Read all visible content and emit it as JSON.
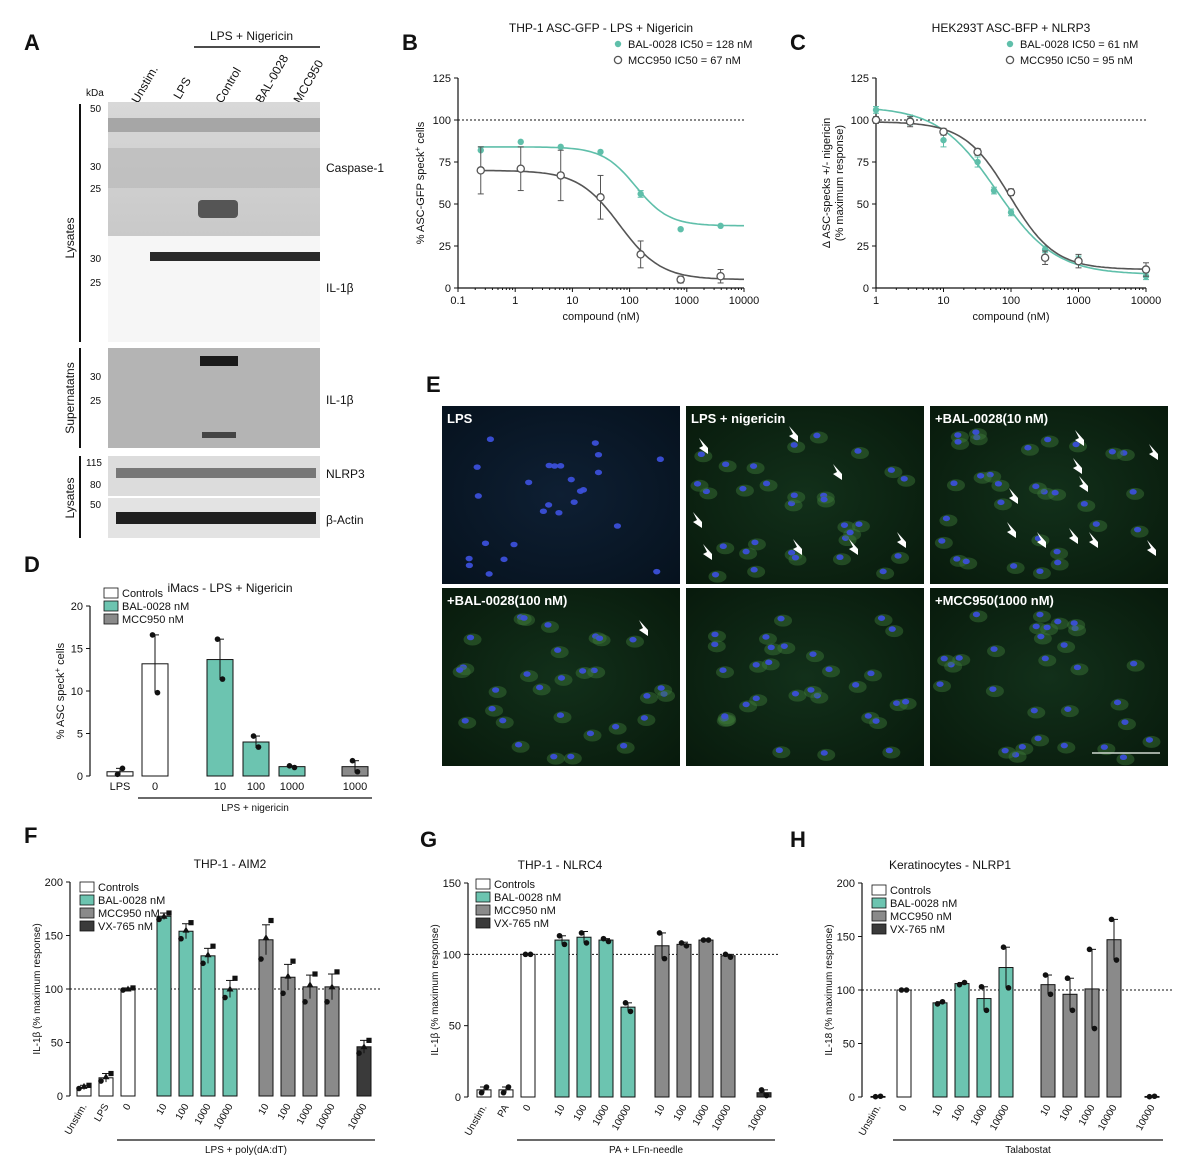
{
  "figure": {
    "panel_letters": [
      "A",
      "B",
      "C",
      "D",
      "E",
      "F",
      "G",
      "H"
    ],
    "colors": {
      "teal": "#5fbfaa",
      "teal_bar": "#6cc4b0",
      "grey_bar": "#8a8a8a",
      "dark_bar": "#3a3a3a",
      "open": "#ffffff",
      "line_grey": "#555555",
      "nuclei": "#3b4fd8",
      "cyto": "#3f7a3a"
    }
  },
  "blot": {
    "header_group": "LPS + Nigericin",
    "lanes": [
      "Unstim.",
      "LPS",
      "Control",
      "BAL-0028",
      "MCC950"
    ],
    "kda_label": "kDa",
    "sections": [
      {
        "side": "Lysates",
        "markers": [
          "50",
          "30",
          "25"
        ],
        "target": "Caspase-1"
      },
      {
        "side": "",
        "markers": [
          "30",
          "25"
        ],
        "target": "IL-1β"
      },
      {
        "side": "Supernatatns",
        "markers": [
          "30",
          "25"
        ],
        "target": "IL-1β"
      },
      {
        "side": "Lysates",
        "markers": [
          "115",
          "80"
        ],
        "target": "NLRP3"
      },
      {
        "side": "",
        "markers": [
          "50"
        ],
        "target": "β-Actin"
      }
    ]
  },
  "micrographs": {
    "tiles": [
      "LPS",
      "LPS + nigericin",
      "+BAL-0028(10 nM)",
      "+BAL-0028(100 nM)",
      "",
      "+MCC950(1000 nM)"
    ]
  },
  "chart_data": [
    {
      "panel": "B",
      "type": "scatter",
      "title": "THP-1 ASC-GFP - LPS + Nigericin",
      "xlabel": "compound (nM)",
      "ylabel_main": "% ASC-GFP speck",
      "ylabel_sup": "+",
      "ylabel_tail": " cells",
      "xscale": "log",
      "xlim": [
        0.1,
        10000
      ],
      "ylim": [
        0,
        125
      ],
      "x_ticks": [
        "0.1",
        "1",
        "10",
        "100",
        "1000",
        "10000"
      ],
      "y_ticks": [
        "0",
        "25",
        "50",
        "75",
        "100",
        "125"
      ],
      "reference_line": 100,
      "legend": [
        "BAL-0028 IC50 = 128 nM",
        "MCC950 IC50 = 67 nM"
      ],
      "series": [
        {
          "name": "BAL-0028",
          "ic50": 128,
          "x": [
            0.25,
            1.25,
            6.25,
            31,
            156,
            781,
            3900
          ],
          "y": [
            82,
            87,
            84,
            81,
            56,
            35,
            37
          ],
          "err": [
            0,
            0,
            0,
            0,
            2,
            0,
            0
          ],
          "fit": {
            "top": 84,
            "bottom": 37,
            "hill": 1.5
          }
        },
        {
          "name": "MCC950",
          "ic50": 67,
          "x": [
            0.25,
            1.25,
            6.25,
            31,
            156,
            781,
            3900
          ],
          "y": [
            70,
            71,
            67,
            54,
            20,
            5,
            7
          ],
          "err": [
            14,
            13,
            15,
            13,
            8,
            2,
            4
          ],
          "fit": {
            "top": 70,
            "bottom": 5,
            "hill": 1.2
          }
        }
      ]
    },
    {
      "panel": "C",
      "type": "scatter",
      "title": "HEK293T ASC-BFP + NLRP3",
      "xlabel": "compound (nM)",
      "ylabel_line1": "Δ ASC-specks +/- nigericin",
      "ylabel_line2": "(% maximum response)",
      "xscale": "log",
      "xlim": [
        1,
        10000
      ],
      "ylim": [
        0,
        125
      ],
      "x_ticks": [
        "1",
        "10",
        "100",
        "1000",
        "10000"
      ],
      "y_ticks": [
        "0",
        "25",
        "50",
        "75",
        "100",
        "125"
      ],
      "reference_line": 100,
      "legend": [
        "BAL-0028 IC50 = 61 nM",
        "MCC950 IC50 = 95 nM"
      ],
      "series": [
        {
          "name": "BAL-0028",
          "ic50": 61,
          "x": [
            1,
            3.2,
            10,
            32,
            56,
            100,
            320,
            1000,
            10000
          ],
          "y": [
            106,
            100,
            88,
            75,
            58,
            45,
            23,
            17,
            7
          ],
          "err": [
            2,
            3,
            4,
            3,
            2,
            2,
            2,
            2,
            2
          ],
          "fit": {
            "top": 108,
            "bottom": 8,
            "hill": 1.0
          }
        },
        {
          "name": "MCC950",
          "ic50": 95,
          "x": [
            1,
            3.2,
            10,
            32,
            100,
            320,
            1000,
            10000
          ],
          "y": [
            100,
            99,
            93,
            81,
            57,
            18,
            16,
            11
          ],
          "err": [
            2,
            3,
            2,
            2,
            2,
            4,
            4,
            4
          ],
          "fit": {
            "top": 99,
            "bottom": 11,
            "hill": 1.3
          }
        }
      ]
    },
    {
      "panel": "D",
      "type": "bar",
      "title": "iMacs - LPS + Nigericin",
      "ylabel_main": "% ASC speck",
      "ylabel_sup": "+",
      "ylabel_tail": " cells",
      "ylim": [
        0,
        20
      ],
      "y_ticks": [
        "0",
        "5",
        "10",
        "15",
        "20"
      ],
      "legend": [
        "Controls",
        "BAL-0028 nM",
        "MCC950 nM"
      ],
      "bracket_label": "LPS + nigericin",
      "bars": [
        {
          "label": "LPS",
          "group": 0,
          "mean": 0.5,
          "sem": 0.4,
          "points": [
            0.2,
            0.9
          ]
        },
        {
          "label": "0",
          "group": 0,
          "mean": 13.2,
          "sem": 3.4,
          "points": [
            16.6,
            9.8
          ]
        },
        {
          "label": "10",
          "group": 1,
          "mean": 13.7,
          "sem": 2.4,
          "points": [
            16.1,
            11.4
          ]
        },
        {
          "label": "100",
          "group": 1,
          "mean": 4.0,
          "sem": 0.7,
          "points": [
            4.7,
            3.4
          ]
        },
        {
          "label": "1000",
          "group": 1,
          "mean": 1.1,
          "sem": 0.1,
          "points": [
            1.2,
            1.0
          ]
        },
        {
          "label": "1000",
          "group": 2,
          "mean": 1.1,
          "sem": 0.7,
          "points": [
            1.8,
            0.5
          ]
        }
      ]
    },
    {
      "panel": "F",
      "type": "bar",
      "title": "THP-1 - AIM2",
      "ylabel": "IL-1β (% maximum response)",
      "ylim": [
        0,
        200
      ],
      "y_ticks": [
        "0",
        "50",
        "100",
        "150",
        "200"
      ],
      "reference_line": 100,
      "legend": [
        "Controls",
        "BAL-0028 nM",
        "MCC950 nM",
        "VX-765 nM"
      ],
      "bracket_label": "LPS + poly(dA:dT)",
      "bars": [
        {
          "label": "Unstim.",
          "group": 0,
          "mean": 8,
          "sem": 2,
          "points": [
            7,
            9,
            10
          ]
        },
        {
          "label": "LPS",
          "group": 0,
          "mean": 17,
          "sem": 4,
          "points": [
            14,
            18,
            21
          ]
        },
        {
          "label": "0",
          "group": 0,
          "mean": 100,
          "sem": 1,
          "points": [
            99,
            100,
            101
          ]
        },
        {
          "label": "10",
          "group": 1,
          "mean": 168,
          "sem": 3,
          "points": [
            165,
            168,
            171
          ]
        },
        {
          "label": "100",
          "group": 1,
          "mean": 154,
          "sem": 7,
          "points": [
            147,
            155,
            162
          ]
        },
        {
          "label": "1000",
          "group": 1,
          "mean": 131,
          "sem": 7,
          "points": [
            124,
            132,
            140
          ]
        },
        {
          "label": "10000",
          "group": 1,
          "mean": 100,
          "sem": 8,
          "points": [
            92,
            100,
            110
          ]
        },
        {
          "label": "10",
          "group": 2,
          "mean": 146,
          "sem": 14,
          "points": [
            128,
            148,
            164
          ]
        },
        {
          "label": "100",
          "group": 2,
          "mean": 111,
          "sem": 12,
          "points": [
            96,
            112,
            126
          ]
        },
        {
          "label": "1000",
          "group": 2,
          "mean": 102,
          "sem": 11,
          "points": [
            88,
            104,
            114
          ]
        },
        {
          "label": "10000",
          "group": 2,
          "mean": 102,
          "sem": 12,
          "points": [
            88,
            102,
            116
          ]
        },
        {
          "label": "10000",
          "group": 3,
          "mean": 46,
          "sem": 6,
          "points": [
            40,
            46,
            52
          ]
        }
      ]
    },
    {
      "panel": "G",
      "type": "bar",
      "title": "THP-1 - NLRC4",
      "ylabel": "IL-1β (% maximum response)",
      "ylim": [
        0,
        150
      ],
      "y_ticks": [
        "0",
        "50",
        "100",
        "150"
      ],
      "reference_line": 100,
      "legend": [
        "Controls",
        "BAL-0028 nM",
        "MCC950 nM",
        "VX-765 nM"
      ],
      "bracket_label": "PA + LFn-needle",
      "bars": [
        {
          "label": "Unstim.",
          "group": 0,
          "mean": 5,
          "sem": 2,
          "points": [
            3,
            7
          ]
        },
        {
          "label": "PA",
          "group": 0,
          "mean": 5,
          "sem": 2,
          "points": [
            3,
            7
          ]
        },
        {
          "label": "0",
          "group": 0,
          "mean": 100,
          "sem": 0.5,
          "points": [
            100,
            100
          ]
        },
        {
          "label": "10",
          "group": 1,
          "mean": 110,
          "sem": 3,
          "points": [
            113,
            107
          ]
        },
        {
          "label": "100",
          "group": 1,
          "mean": 112,
          "sem": 4,
          "points": [
            115,
            108
          ]
        },
        {
          "label": "1000",
          "group": 1,
          "mean": 110,
          "sem": 1,
          "points": [
            111,
            109
          ]
        },
        {
          "label": "10000",
          "group": 1,
          "mean": 63,
          "sem": 3,
          "points": [
            66,
            60
          ]
        },
        {
          "label": "10",
          "group": 2,
          "mean": 106,
          "sem": 9,
          "points": [
            115,
            97
          ]
        },
        {
          "label": "100",
          "group": 2,
          "mean": 107,
          "sem": 1.5,
          "points": [
            108,
            106
          ]
        },
        {
          "label": "1000",
          "group": 2,
          "mean": 110,
          "sem": 0.5,
          "points": [
            110,
            110
          ]
        },
        {
          "label": "10000",
          "group": 2,
          "mean": 99,
          "sem": 1,
          "points": [
            100,
            98
          ]
        },
        {
          "label": "10000",
          "group": 3,
          "mean": 3,
          "sem": 2,
          "points": [
            5,
            1
          ]
        }
      ]
    },
    {
      "panel": "H",
      "type": "bar",
      "title": "Keratinocytes - NLRP1",
      "ylabel": "IL-18 (% maximum response)",
      "ylim": [
        0,
        200
      ],
      "y_ticks": [
        "0",
        "50",
        "100",
        "150",
        "200"
      ],
      "reference_line": 100,
      "legend": [
        "Controls",
        "BAL-0028 nM",
        "MCC950 nM",
        "VX-765 nM"
      ],
      "bracket_label": "Talabostat",
      "bars": [
        {
          "label": "Unstim.",
          "group": 0,
          "mean": 0.5,
          "sem": 0.3,
          "points": [
            0.3,
            0.7
          ]
        },
        {
          "label": "0",
          "group": 0,
          "mean": 100,
          "sem": 0.5,
          "points": [
            100,
            100
          ]
        },
        {
          "label": "10",
          "group": 1,
          "mean": 88,
          "sem": 1,
          "points": [
            87,
            89
          ]
        },
        {
          "label": "100",
          "group": 1,
          "mean": 106,
          "sem": 1,
          "points": [
            105,
            107
          ]
        },
        {
          "label": "1000",
          "group": 1,
          "mean": 92,
          "sem": 11,
          "points": [
            103,
            81
          ]
        },
        {
          "label": "10000",
          "group": 1,
          "mean": 121,
          "sem": 19,
          "points": [
            140,
            102
          ]
        },
        {
          "label": "10",
          "group": 2,
          "mean": 105,
          "sem": 9,
          "points": [
            114,
            96
          ]
        },
        {
          "label": "100",
          "group": 2,
          "mean": 96,
          "sem": 15,
          "points": [
            111,
            81
          ]
        },
        {
          "label": "1000",
          "group": 2,
          "mean": 101,
          "sem": 37,
          "points": [
            138,
            64
          ]
        },
        {
          "label": "10000",
          "group": 2,
          "mean": 147,
          "sem": 19,
          "points": [
            166,
            128
          ]
        },
        {
          "label": "10000",
          "group": 3,
          "mean": 0.5,
          "sem": 0.3,
          "points": [
            0.3,
            0.7
          ]
        }
      ]
    }
  ]
}
